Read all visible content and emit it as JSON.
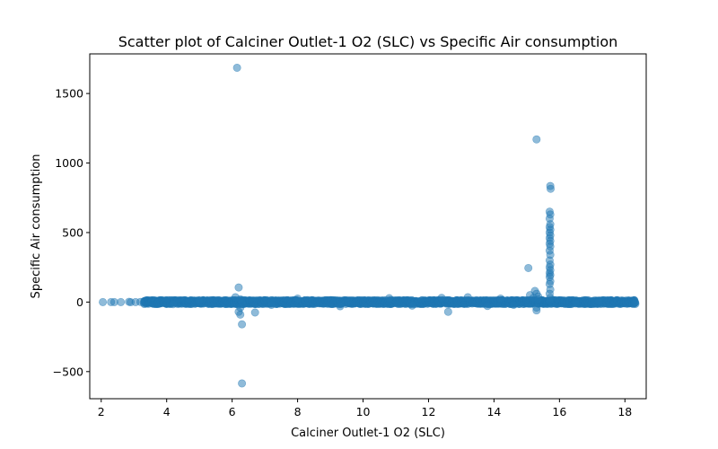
{
  "chart_data": {
    "type": "scatter",
    "title": "Scatter plot of Calciner Outlet-1 O2 (SLC) vs Specific Air consumption",
    "xlabel": "Calciner Outlet-1 O2 (SLC)",
    "ylabel": "Specific Air consumption",
    "xlim": [
      1.65,
      18.65
    ],
    "ylim": [
      -695,
      1785
    ],
    "xticks": [
      2,
      4,
      6,
      8,
      10,
      12,
      14,
      16,
      18
    ],
    "yticks": [
      -500,
      0,
      500,
      1000,
      1500
    ],
    "ytick_labels": [
      "−500",
      "0",
      "500",
      "1000",
      "1500"
    ],
    "grid": false,
    "marker_color": "#1f77b4",
    "marker_alpha": 0.5,
    "band": {
      "x_start": 3.3,
      "x_end": 18.3,
      "y_center": 0,
      "y_half_width": 14
    },
    "points": [
      [
        2.05,
        0
      ],
      [
        2.3,
        0
      ],
      [
        2.4,
        0
      ],
      [
        2.6,
        0
      ],
      [
        2.85,
        2
      ],
      [
        2.9,
        -1
      ],
      [
        3.05,
        0
      ],
      [
        3.2,
        1
      ],
      [
        6.15,
        1685
      ],
      [
        6.2,
        105
      ],
      [
        6.25,
        20
      ],
      [
        6.3,
        -5
      ],
      [
        6.25,
        -40
      ],
      [
        6.2,
        -70
      ],
      [
        6.25,
        -90
      ],
      [
        6.3,
        -160
      ],
      [
        6.3,
        -585
      ],
      [
        6.7,
        -75
      ],
      [
        6.1,
        35
      ],
      [
        12.6,
        -70
      ],
      [
        12.4,
        30
      ],
      [
        13.2,
        35
      ],
      [
        15.05,
        245
      ],
      [
        15.1,
        50
      ],
      [
        15.3,
        1170
      ],
      [
        15.25,
        80
      ],
      [
        15.3,
        60
      ],
      [
        15.35,
        40
      ],
      [
        15.2,
        30
      ],
      [
        15.3,
        -60
      ],
      [
        15.3,
        -40
      ],
      [
        15.35,
        20
      ],
      [
        15.72,
        835
      ],
      [
        15.73,
        815
      ],
      [
        15.7,
        650
      ],
      [
        15.72,
        630
      ],
      [
        15.7,
        600
      ],
      [
        15.72,
        560
      ],
      [
        15.7,
        540
      ],
      [
        15.72,
        520
      ],
      [
        15.7,
        500
      ],
      [
        15.72,
        480
      ],
      [
        15.7,
        460
      ],
      [
        15.72,
        440
      ],
      [
        15.7,
        420
      ],
      [
        15.72,
        400
      ],
      [
        15.7,
        370
      ],
      [
        15.72,
        340
      ],
      [
        15.7,
        300
      ],
      [
        15.72,
        270
      ],
      [
        15.7,
        250
      ],
      [
        15.72,
        230
      ],
      [
        15.7,
        210
      ],
      [
        15.72,
        195
      ],
      [
        15.7,
        180
      ],
      [
        15.72,
        150
      ],
      [
        15.7,
        130
      ],
      [
        15.72,
        90
      ],
      [
        15.7,
        60
      ],
      [
        15.72,
        30
      ],
      [
        15.7,
        10
      ],
      [
        14.6,
        -20
      ],
      [
        16.5,
        -10
      ],
      [
        17.2,
        5
      ],
      [
        5.0,
        12
      ],
      [
        8.0,
        25
      ],
      [
        9.3,
        -30
      ],
      [
        10.8,
        28
      ],
      [
        11.5,
        -25
      ],
      [
        7.2,
        -20
      ],
      [
        4.2,
        -15
      ],
      [
        13.8,
        -28
      ],
      [
        14.2,
        25
      ]
    ]
  }
}
